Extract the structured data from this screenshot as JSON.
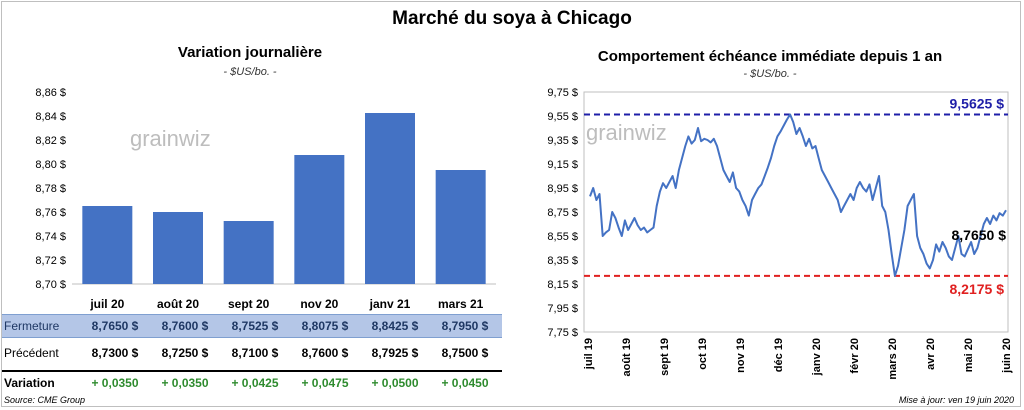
{
  "title": "Marché du soya à Chicago",
  "left": {
    "title": "Variation journalière",
    "unit": "- $US/bo. -",
    "watermark": "grainwiz"
  },
  "right": {
    "title": "Comportement échéance immédiate depuis 1 an",
    "unit": "- $US/bo. -",
    "watermark": "grainwiz"
  },
  "table": {
    "close_label": "Fermeture",
    "prev_label": "Précédent",
    "var_label": "Variation",
    "close": [
      "8,7650 $",
      "8,7600 $",
      "8,7525 $",
      "8,8075 $",
      "8,8425 $",
      "8,7950 $"
    ],
    "prev": [
      "8,7300 $",
      "8,7250 $",
      "8,7100 $",
      "8,7600 $",
      "8,7925 $",
      "8,7500 $"
    ],
    "var": [
      "+ 0,0350",
      "+ 0,0350",
      "+ 0,0425",
      "+ 0,0475",
      "+ 0,0500",
      "+ 0,0450"
    ]
  },
  "footer": {
    "source": "Source: CME Group",
    "updated": "Mise à jour: ven 19 juin 2020"
  },
  "colors": {
    "bar": "#4472c4",
    "line": "#4472c4",
    "high": "#1f1fa8",
    "low": "#e02020"
  },
  "chart_data": [
    {
      "type": "bar",
      "categories": [
        "juil 20",
        "août 20",
        "sept 20",
        "nov 20",
        "janv 21",
        "mars 21"
      ],
      "values": [
        8.765,
        8.76,
        8.7525,
        8.8075,
        8.8425,
        8.795
      ],
      "ylim": [
        8.7,
        8.86
      ],
      "yticks": [
        8.7,
        8.72,
        8.74,
        8.76,
        8.78,
        8.8,
        8.82,
        8.84,
        8.86
      ],
      "ytick_labels": [
        "8,70 $",
        "8,72 $",
        "8,74 $",
        "8,76 $",
        "8,78 $",
        "8,80 $",
        "8,82 $",
        "8,84 $",
        "8,86 $"
      ],
      "grid": false
    },
    {
      "type": "line",
      "ylim": [
        7.75,
        9.75
      ],
      "yticks": [
        7.75,
        7.95,
        8.15,
        8.35,
        8.55,
        8.75,
        8.95,
        9.15,
        9.35,
        9.55,
        9.75
      ],
      "ytick_labels": [
        "7,75 $",
        "7,95 $",
        "8,15 $",
        "8,35 $",
        "8,55 $",
        "8,75 $",
        "8,95 $",
        "9,15 $",
        "9,35 $",
        "9,55 $",
        "9,75 $"
      ],
      "x_labels": [
        "juil 19",
        "août 19",
        "sept 19",
        "oct 19",
        "nov 19",
        "déc 19",
        "janv 20",
        "févr 20",
        "mars 20",
        "avr 20",
        "mai 20",
        "juin 20"
      ],
      "high": 9.5625,
      "high_label": "9,5625 $",
      "low": 8.2175,
      "low_label": "8,2175 $",
      "last_label": "8,7650 $",
      "values": [
        8.88,
        8.95,
        8.85,
        8.9,
        8.55,
        8.58,
        8.6,
        8.75,
        8.7,
        8.62,
        8.55,
        8.68,
        8.6,
        8.65,
        8.7,
        8.64,
        8.6,
        8.62,
        8.58,
        8.6,
        8.62,
        8.8,
        8.92,
        8.99,
        8.95,
        9.0,
        9.05,
        8.95,
        9.1,
        9.2,
        9.3,
        9.38,
        9.32,
        9.35,
        9.45,
        9.34,
        9.36,
        9.35,
        9.33,
        9.36,
        9.3,
        9.2,
        9.1,
        9.05,
        9.0,
        9.08,
        8.95,
        8.92,
        8.85,
        8.8,
        8.72,
        8.85,
        8.9,
        8.95,
        8.98,
        9.05,
        9.12,
        9.2,
        9.3,
        9.38,
        9.42,
        9.47,
        9.52,
        9.5625,
        9.5,
        9.4,
        9.45,
        9.38,
        9.3,
        9.36,
        9.28,
        9.3,
        9.2,
        9.1,
        9.05,
        9.0,
        8.95,
        8.9,
        8.85,
        8.75,
        8.8,
        8.85,
        8.9,
        8.85,
        8.95,
        9.0,
        8.95,
        8.92,
        8.98,
        8.85,
        8.95,
        9.05,
        8.8,
        8.75,
        8.6,
        8.4,
        8.2175,
        8.3,
        8.45,
        8.6,
        8.8,
        8.85,
        8.9,
        8.55,
        8.45,
        8.4,
        8.32,
        8.28,
        8.35,
        8.48,
        8.42,
        8.5,
        8.45,
        8.38,
        8.35,
        8.45,
        8.55,
        8.4,
        8.38,
        8.44,
        8.5,
        8.4,
        8.45,
        8.55,
        8.65,
        8.7,
        8.65,
        8.72,
        8.68,
        8.74,
        8.72,
        8.765
      ]
    }
  ]
}
